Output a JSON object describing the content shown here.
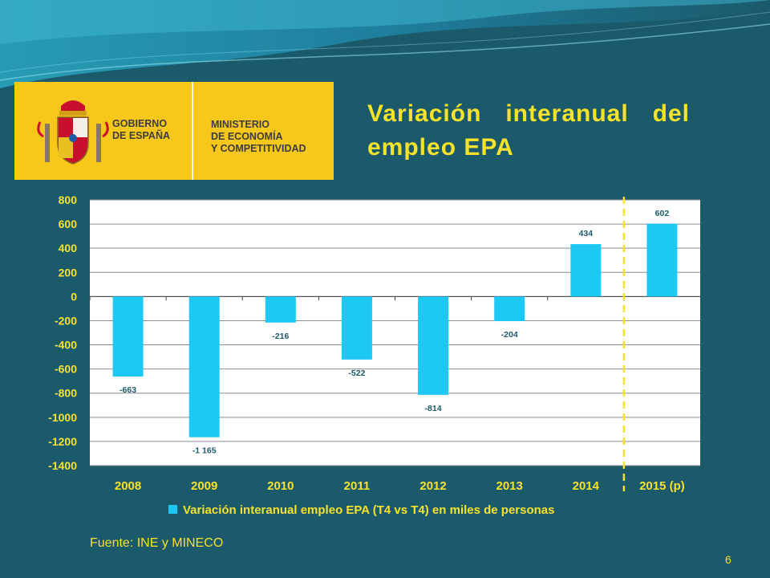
{
  "slide": {
    "title": "Variación interanual del empleo EPA",
    "source": "Fuente: INE y MINECO",
    "page_number": "6"
  },
  "logo": {
    "left_text": "GOBIERNO\nDE ESPAÑA",
    "right_text": "MINISTERIO\nDE ECONOMÍA\nY COMPETITIVIDAD"
  },
  "colors": {
    "background": "#1b5a6b",
    "bar": "#1ec8f5",
    "title": "#f7e22a",
    "logo_bg": "#f7c71a"
  },
  "chart_data": {
    "type": "bar",
    "categories": [
      "2008",
      "2009",
      "2010",
      "2011",
      "2012",
      "2013",
      "2014",
      "2015 (p)"
    ],
    "series": [
      {
        "name": "Variación interanual empleo EPA (T4 vs T4) en miles de personas",
        "values": [
          -663,
          -1165,
          -216,
          -522,
          -814,
          -204,
          434,
          602
        ],
        "labels": [
          "-663",
          "-1 165",
          "-216",
          "-522",
          "-814",
          "-204",
          "434",
          "602"
        ]
      }
    ],
    "ylim": [
      -1400,
      800
    ],
    "yticks": [
      800,
      600,
      400,
      200,
      0,
      -200,
      -400,
      -600,
      -800,
      -1000,
      -1200,
      -1400
    ],
    "ytick_labels": [
      "800",
      "600",
      "400",
      "200",
      "0",
      "-200",
      "-400",
      "-600",
      "-800",
      "-1000",
      "-1200",
      "-1400"
    ],
    "legend_position": "bottom",
    "grid": true,
    "separator_before_category": "2015 (p)"
  }
}
